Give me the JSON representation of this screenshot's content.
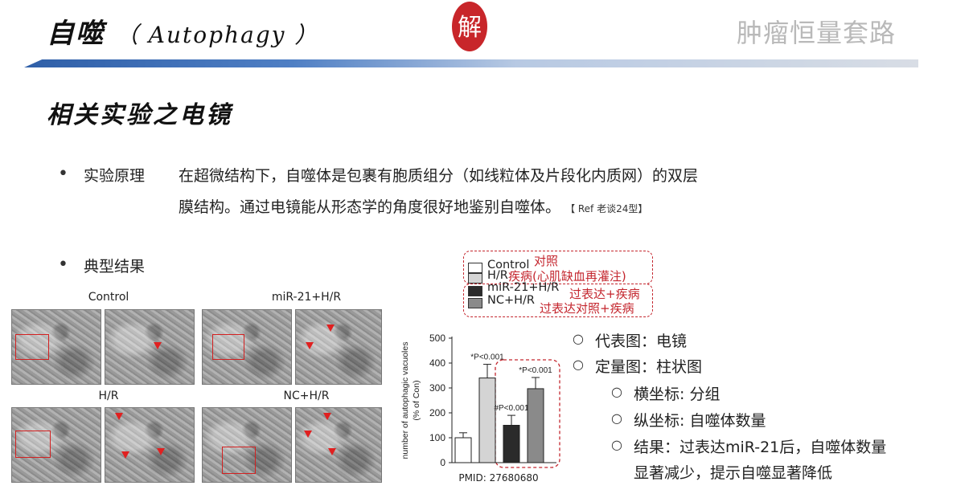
{
  "header": {
    "title_cn": "自噬",
    "title_en": "（ Autophagy ）",
    "brand": "肿瘤恒量套路",
    "seal_char": "解"
  },
  "section": {
    "subtitle": "相关实验之电镜"
  },
  "principle": {
    "label": "实验原理",
    "line1": "在超微结构下，自噬体是包裹有胞质组分（如线粒体及片段化内质网）的双层",
    "line2": "膜结构。通过电镜能从形态学的角度很好地鉴别自噬体。",
    "ref": "【 Ref 老谈24型】"
  },
  "result_label": "典型结果",
  "em_panels": {
    "control": "Control",
    "mir": "miR-21+H/R",
    "hr": "H/R",
    "nc": "NC+H/R"
  },
  "legend": {
    "items": [
      "Control",
      "H/R",
      "miR-21+H/R",
      "NC+H/R"
    ],
    "notes": {
      "control": "对照",
      "hr": "疾病(心肌缺血再灌注)",
      "mir": "过表达+疾病",
      "nc": "过表达对照+疾病"
    }
  },
  "pmid": "PMID: 27680680",
  "chart_data": {
    "type": "bar",
    "categories": [
      "Control",
      "H/R",
      "miR-21+H/R",
      "NC+H/R"
    ],
    "values": [
      100,
      340,
      150,
      297
    ],
    "errors": [
      20,
      55,
      40,
      45
    ],
    "annotations": [
      "",
      "*P<0.001",
      "#P<0.001",
      "*P<0.001"
    ],
    "ylabel_line1": "number of autophagic vacuoles",
    "ylabel_line2": "(% of Con)",
    "ylim": [
      0,
      500
    ],
    "yticks": [
      0,
      100,
      200,
      300,
      400,
      500
    ],
    "colors": [
      "#ffffff",
      "#d4d4d4",
      "#2b2b2b",
      "#8a8a8a"
    ]
  },
  "notes": {
    "n1": "代表图：电镜",
    "n2": "定量图：柱状图",
    "n3": "横坐标: 分组",
    "n4": "纵坐标: 自噬体数量",
    "n5a": "结果：过表达miR-21后，自噬体数量",
    "n5b": "显著减少，提示自噬显著降低"
  }
}
